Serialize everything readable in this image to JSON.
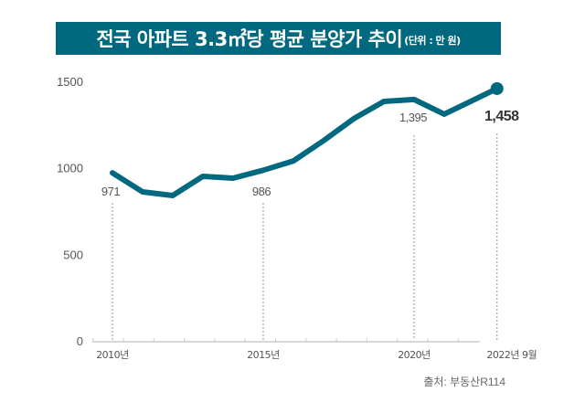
{
  "chart_data": {
    "type": "line",
    "title": "전국 아파트 3.3㎡당 평균 분양가 추이",
    "unit_note": "(단위 : 만 원)",
    "x": [
      2010,
      2011,
      2012,
      2013,
      2014,
      2015,
      2016,
      2017,
      2018,
      2019,
      2020,
      2021,
      2022.75
    ],
    "values": [
      971,
      861,
      840,
      951,
      940,
      986,
      1040,
      1157,
      1284,
      1384,
      1395,
      1310,
      1458
    ],
    "ylim": [
      0,
      1500
    ],
    "yticks": [
      "0",
      "500",
      "1000",
      "1500"
    ],
    "xtick_labels": [
      {
        "x": 2010,
        "label": "2010년"
      },
      {
        "x": 2015,
        "label": "2015년"
      },
      {
        "x": 2020,
        "label": "2020년"
      },
      {
        "x": 2022.75,
        "label": "2022년 9월"
      }
    ],
    "annotations": [
      {
        "x": 2010,
        "value": 971,
        "label": "971"
      },
      {
        "x": 2015,
        "value": 986,
        "label": "986"
      },
      {
        "x": 2020,
        "value": 1395,
        "label": "1,395"
      },
      {
        "x": 2022.75,
        "value": 1458,
        "label": "1,458",
        "bold": true
      }
    ],
    "grid": false,
    "line_color": "#00687f",
    "source": "출처: 부동산R114"
  }
}
